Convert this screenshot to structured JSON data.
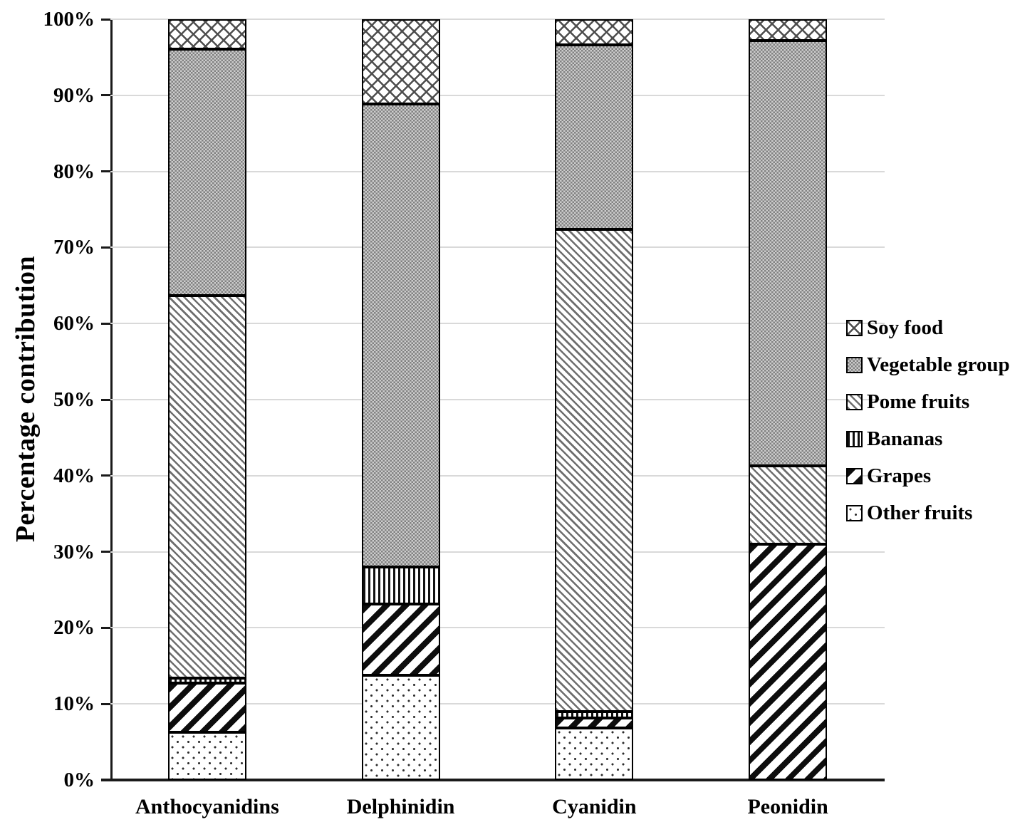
{
  "chart_data": {
    "type": "bar",
    "stacked": true,
    "title": "",
    "xlabel": "",
    "ylabel": "Percentage contribution",
    "ylim": [
      0,
      100
    ],
    "y_tick_labels": [
      "0%",
      "10%",
      "20%",
      "30%",
      "40%",
      "50%",
      "60%",
      "70%",
      "80%",
      "90%",
      "100%"
    ],
    "grid": true,
    "legend_position": "right",
    "categories": [
      "Anthocyanidins",
      "Delphinidin",
      "Cyanidin",
      "Peonidin"
    ],
    "series": [
      {
        "name": "Other fruits",
        "pattern": "other-fruits",
        "values": [
          6.3,
          13.8,
          6.8,
          0
        ]
      },
      {
        "name": "Grapes",
        "pattern": "grapes",
        "values": [
          6.4,
          9.3,
          1.3,
          31.0
        ]
      },
      {
        "name": "Bananas",
        "pattern": "bananas",
        "values": [
          0.7,
          4.9,
          0.9,
          0
        ]
      },
      {
        "name": "Pome fruits",
        "pattern": "pome-fruits",
        "values": [
          50.3,
          0,
          63.4,
          10.3
        ]
      },
      {
        "name": "Vegetable group",
        "pattern": "vegetable-group",
        "values": [
          32.4,
          60.9,
          24.2,
          55.9
        ]
      },
      {
        "name": "Soy food",
        "pattern": "soy-food",
        "values": [
          3.9,
          11.1,
          3.4,
          2.8
        ]
      }
    ],
    "legend": [
      {
        "label": "Soy food",
        "pattern": "soy-food"
      },
      {
        "label": "Vegetable group",
        "pattern": "vegetable-group"
      },
      {
        "label": "Pome fruits",
        "pattern": "pome-fruits"
      },
      {
        "label": "Bananas",
        "pattern": "bananas"
      },
      {
        "label": "Grapes",
        "pattern": "grapes"
      },
      {
        "label": "Other fruits",
        "pattern": "other-fruits"
      }
    ],
    "colors": {
      "grid": "#d9d9d9",
      "axis": "#1a1a1a",
      "text": "#000000"
    }
  }
}
